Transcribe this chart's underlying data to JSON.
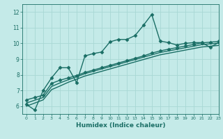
{
  "xlabel": "Humidex (Indice chaleur)",
  "xlim": [
    -0.5,
    23
  ],
  "ylim": [
    5.5,
    12.5
  ],
  "yticks": [
    6,
    7,
    8,
    9,
    10,
    11,
    12
  ],
  "xticks": [
    0,
    1,
    2,
    3,
    4,
    5,
    6,
    7,
    8,
    9,
    10,
    11,
    12,
    13,
    14,
    15,
    16,
    17,
    18,
    19,
    20,
    21,
    22,
    23
  ],
  "background_color": "#c4eae8",
  "grid_color": "#a8d8d4",
  "line_color": "#1a6e65",
  "series": [
    [
      6.1,
      5.75,
      7.0,
      7.8,
      8.45,
      8.45,
      7.5,
      9.2,
      9.35,
      9.45,
      10.1,
      10.25,
      10.25,
      10.5,
      11.15,
      11.85,
      10.15,
      10.05,
      9.9,
      10.0,
      10.05,
      10.05,
      9.75,
      10.05
    ],
    [
      6.4,
      6.55,
      6.7,
      7.45,
      7.65,
      7.8,
      7.95,
      8.15,
      8.3,
      8.45,
      8.6,
      8.75,
      8.9,
      9.05,
      9.2,
      9.38,
      9.52,
      9.63,
      9.73,
      9.83,
      9.93,
      10.03,
      10.08,
      10.13
    ],
    [
      6.2,
      6.38,
      6.55,
      7.25,
      7.48,
      7.68,
      7.87,
      8.07,
      8.22,
      8.37,
      8.52,
      8.67,
      8.82,
      8.97,
      9.12,
      9.27,
      9.42,
      9.52,
      9.62,
      9.72,
      9.82,
      9.92,
      9.97,
      10.02
    ],
    [
      6.0,
      6.2,
      6.4,
      7.05,
      7.28,
      7.52,
      7.72,
      7.92,
      8.07,
      8.22,
      8.37,
      8.52,
      8.67,
      8.82,
      8.97,
      9.12,
      9.27,
      9.37,
      9.47,
      9.57,
      9.67,
      9.77,
      9.82,
      9.87
    ]
  ],
  "markers": [
    "D",
    "D",
    null,
    null
  ],
  "linewidths": [
    1.0,
    1.0,
    1.0,
    1.0
  ],
  "markersize": 2.5
}
